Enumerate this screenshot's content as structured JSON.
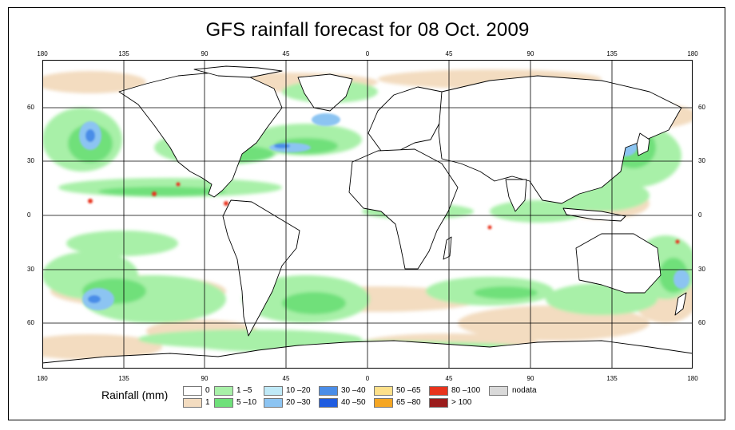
{
  "title": "GFS rainfall forecast for 08 Oct. 2009",
  "axes": {
    "lon_ticks": [
      "180",
      "135",
      "90",
      "45",
      "0",
      "45",
      "90",
      "135",
      "180"
    ],
    "lat_ticks": [
      "60",
      "30",
      "0",
      "30",
      "60"
    ]
  },
  "legend": {
    "title": "Rainfall (mm)",
    "items": [
      {
        "label": "0",
        "color": "#ffffff"
      },
      {
        "label": "1",
        "color": "#f3dcc0"
      },
      {
        "label": "1 –5",
        "color": "#a8f0a8"
      },
      {
        "label": "5 –10",
        "color": "#6fe07a"
      },
      {
        "label": "10 –20",
        "color": "#bfe9f7"
      },
      {
        "label": "20 –30",
        "color": "#8cc4f2"
      },
      {
        "label": "30 –40",
        "color": "#4a8de8"
      },
      {
        "label": "40 –50",
        "color": "#1f5ce0"
      },
      {
        "label": "50 –65",
        "color": "#fde08a"
      },
      {
        "label": "65 –80",
        "color": "#f5a623"
      },
      {
        "label": "80 –100",
        "color": "#e8331c"
      },
      {
        "label": "> 100",
        "color": "#9b1c1c"
      },
      {
        "label": "nodata",
        "color": "#d9d9d9"
      }
    ]
  },
  "colors": {
    "land_outline": "#000000",
    "grid": "#000000"
  }
}
